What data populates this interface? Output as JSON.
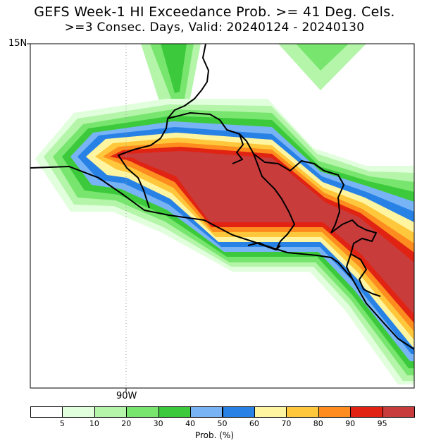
{
  "title_line1": "GEFS Week-1 HI Exceedance Prob. >= 41 Deg. Cels.",
  "title_line2": ">=3 Consec. Days, Valid: 20240124 - 20240130",
  "map": {
    "lat_label": "15N",
    "lon_label": "90W"
  },
  "colorbar": {
    "title": "Prob. (%)",
    "tick_labels": [
      "5",
      "10",
      "20",
      "30",
      "40",
      "50",
      "60",
      "70",
      "80",
      "90",
      "95"
    ],
    "colors": [
      "#ffffff",
      "#e1ffdc",
      "#b4f5aa",
      "#78e66e",
      "#3cca3c",
      "#78b4f5",
      "#2882e6",
      "#fff5a0",
      "#ffc83c",
      "#ff8c1e",
      "#e12314",
      "#c83c3c"
    ]
  }
}
